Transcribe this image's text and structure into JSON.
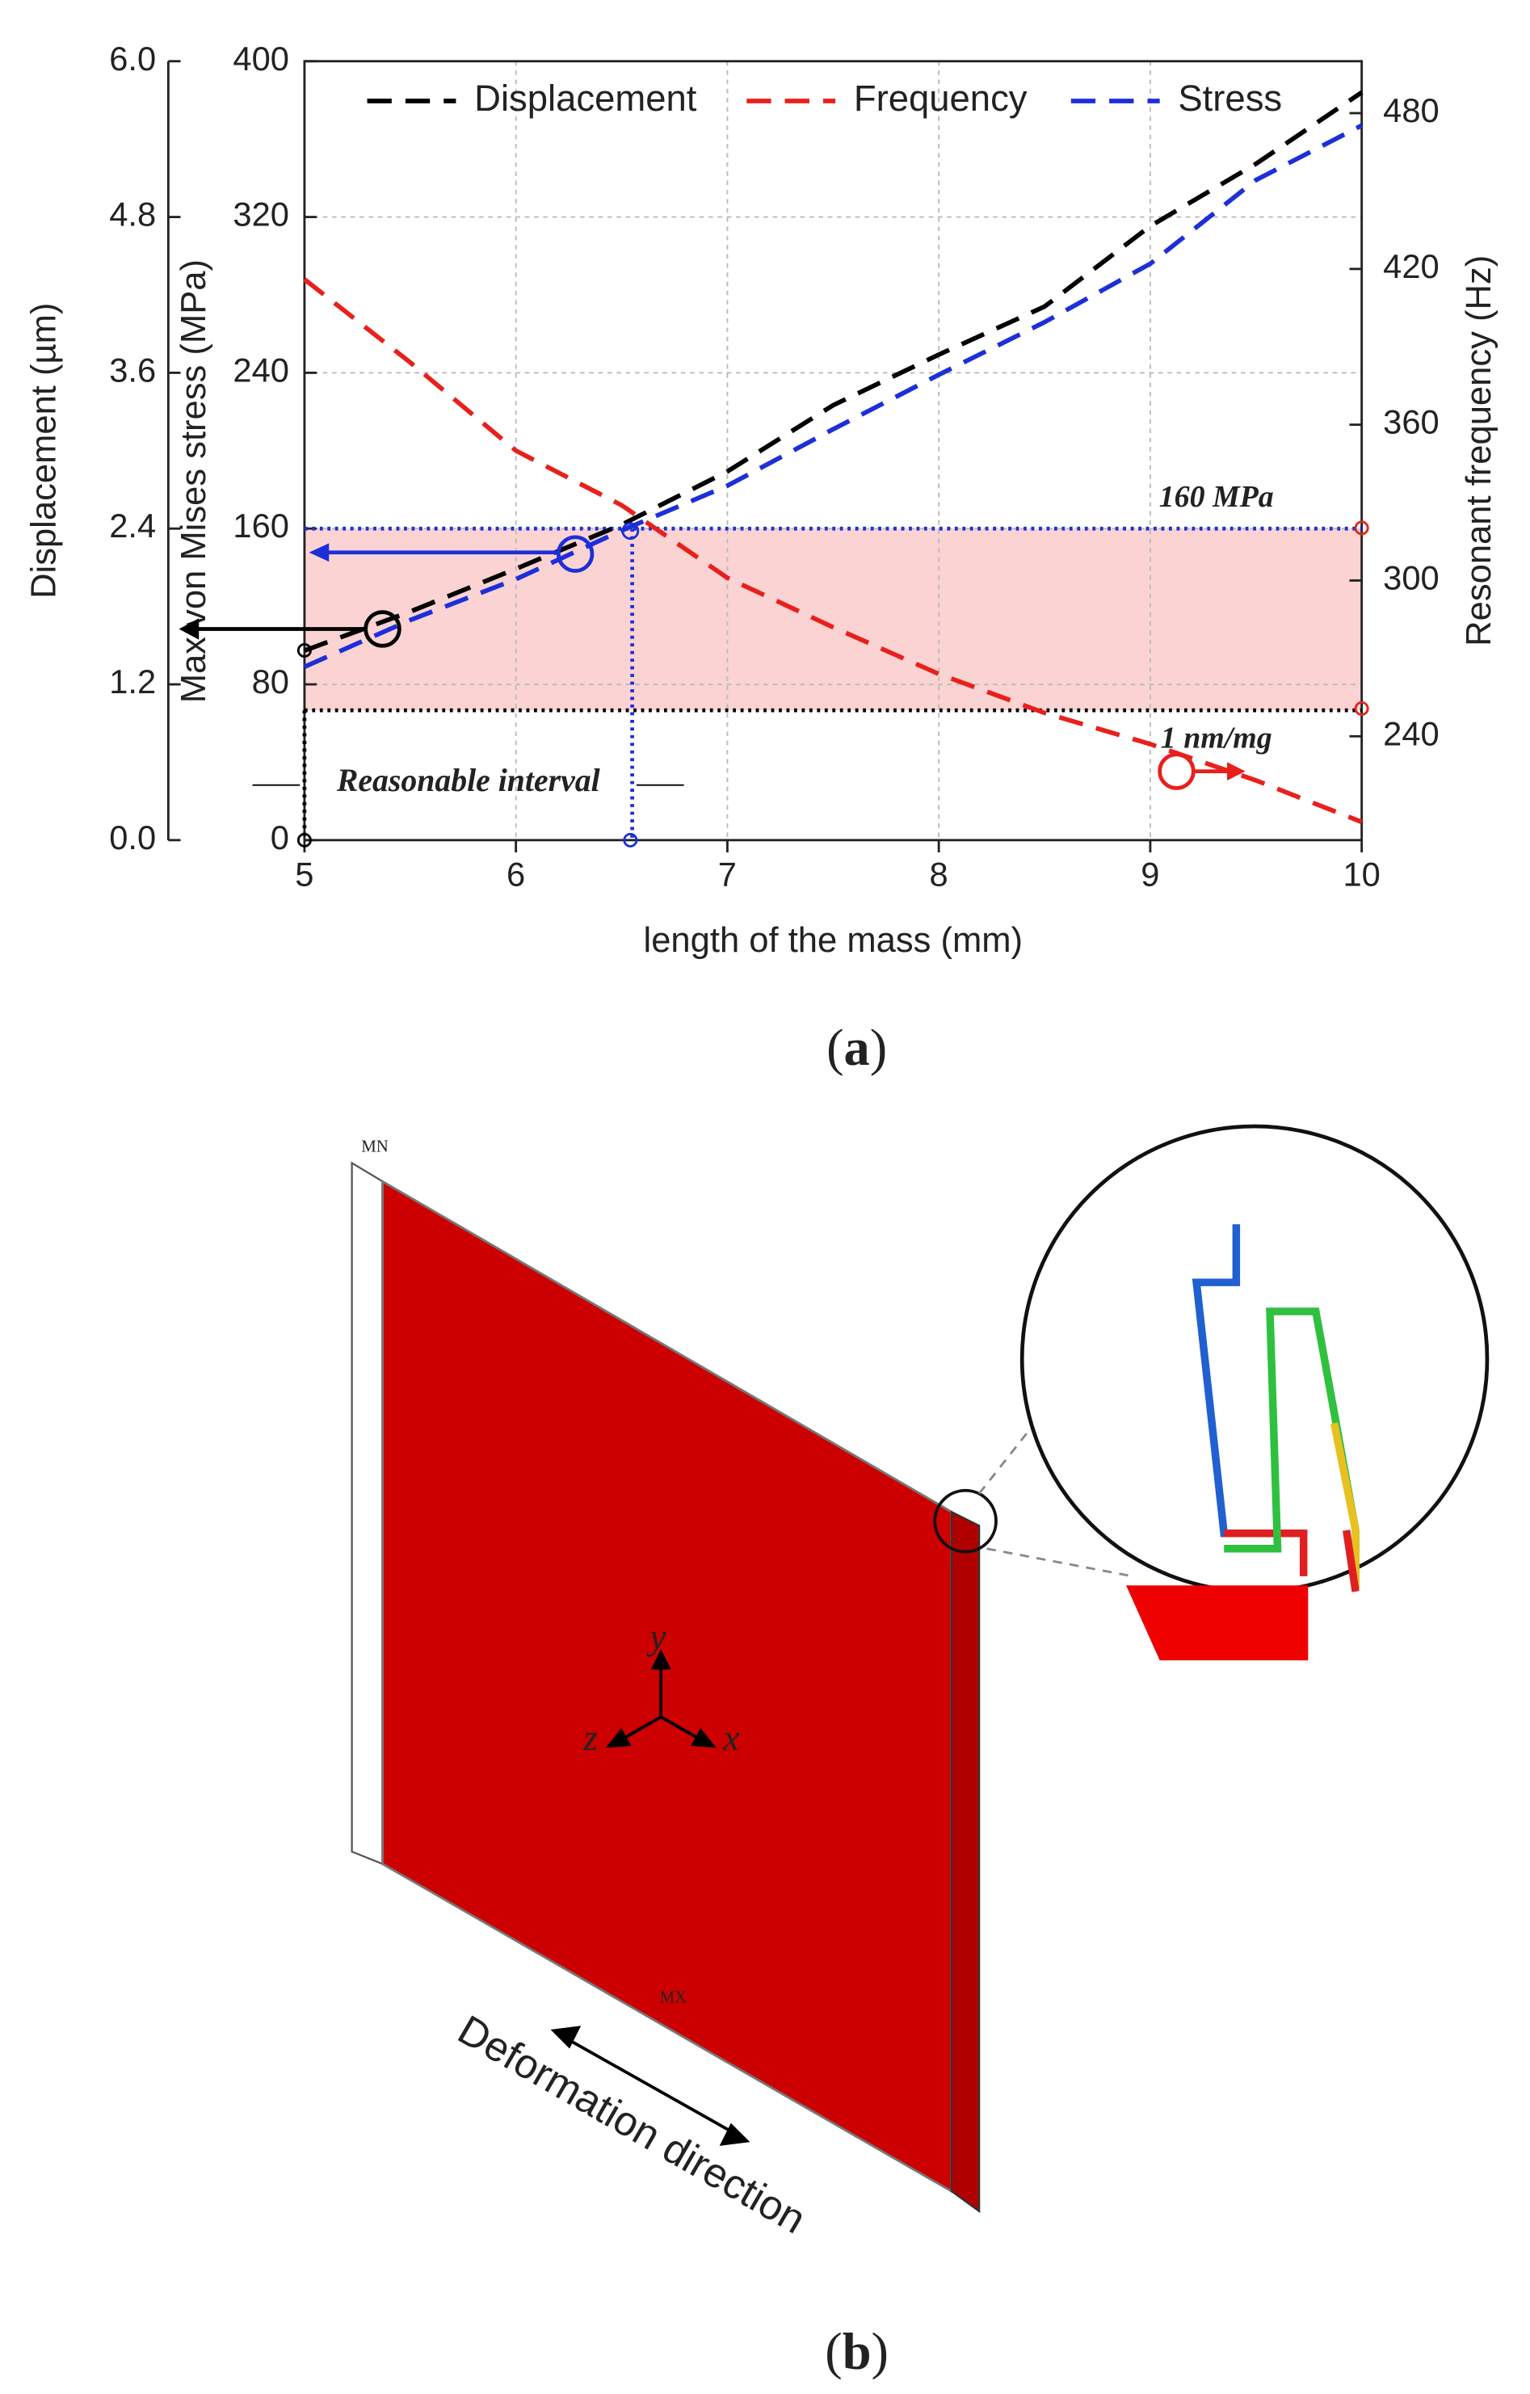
{
  "chart_data": {
    "type": "line",
    "xlabel": "length of the mass (mm)",
    "ylabel": "Displacement (µm)",
    "y3label": "Max von Mises stress (MPa)",
    "y2label": "Resonant frequency (Hz)",
    "x": [
      5,
      5.5,
      6,
      6.5,
      7,
      7.5,
      8,
      8.5,
      9,
      9.5,
      10
    ],
    "xlim": [
      5,
      10
    ],
    "xticks": [
      5,
      6,
      7,
      8,
      9,
      10
    ],
    "ylim": [
      0,
      6
    ],
    "yticks": [
      {
        "value": 0,
        "label": "0.0"
      },
      1.2,
      2.4,
      3.6,
      4.8,
      {
        "value": 6,
        "label": "6.0"
      }
    ],
    "y3lim": [
      0,
      400
    ],
    "y3ticks": [
      0,
      80,
      160,
      240,
      320,
      400
    ],
    "y2lim": [
      200,
      500
    ],
    "y2ticks": [
      240,
      300,
      360,
      420,
      480
    ],
    "grid": true,
    "legend": "top",
    "series": [
      {
        "name": "Displacement",
        "color": "#000000",
        "axis": "y",
        "values": [
          1.46,
          1.76,
          2.09,
          2.43,
          2.84,
          3.35,
          3.74,
          4.11,
          4.73,
          5.21,
          5.76
        ]
      },
      {
        "name": "Frequency",
        "color": "#e8201c",
        "axis": "y2",
        "values": [
          416,
          384,
          350,
          329,
          301,
          282,
          264,
          249,
          237,
          223,
          207
        ]
      },
      {
        "name": "Stress",
        "color": "#1c2fd8",
        "axis": "y3",
        "values": [
          89,
          113,
          134,
          159,
          182,
          211,
          239,
          266,
          296,
          339,
          367
        ]
      }
    ],
    "annotations": [
      {
        "text": "160 MPa",
        "value": 160,
        "axis": "y3",
        "color": "#1c2fd8"
      },
      {
        "text": "1 nm/mg",
        "value": 1,
        "axis": "y",
        "color": "#000000"
      },
      {
        "text": "Reasonable interval",
        "x": [
          5,
          6.55
        ]
      }
    ]
  },
  "captions": {
    "a": "a",
    "b": "b"
  },
  "figure_b": {
    "axes": [
      "y",
      "z",
      "x"
    ],
    "min_label": "MN",
    "max_label": "MX",
    "deformation": "Deformation direction"
  }
}
